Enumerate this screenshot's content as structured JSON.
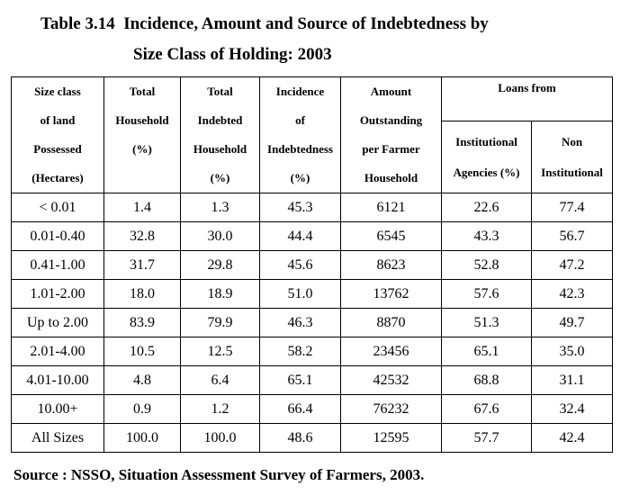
{
  "title_lines": [
    "Table 3.14  Incidence, Amount and Source of Indebtedness by",
    "Size Class of Holding: 2003"
  ],
  "table": {
    "header": [
      [
        "Size class",
        "of land",
        "Possessed",
        "(Hectares)"
      ],
      [
        "Total",
        "Household",
        "(%)"
      ],
      [
        "Total",
        "Indebted",
        "Household",
        "(%)"
      ],
      [
        "Incidence",
        "of",
        "Indebtedness",
        "(%)"
      ],
      [
        "Amount",
        "Outstanding",
        "per Farmer",
        "Household"
      ]
    ],
    "group_header": "Loans from",
    "sub_header": [
      [
        "Institutional",
        "Agencies (%)"
      ],
      [
        "Non",
        "Institutional"
      ]
    ],
    "rows": [
      [
        "< 0.01",
        "1.4",
        "1.3",
        "45.3",
        "6121",
        "22.6",
        "77.4"
      ],
      [
        "0.01-0.40",
        "32.8",
        "30.0",
        "44.4",
        "6545",
        "43.3",
        "56.7"
      ],
      [
        "0.41-1.00",
        "31.7",
        "29.8",
        "45.6",
        "8623",
        "52.8",
        "47.2"
      ],
      [
        "1.01-2.00",
        "18.0",
        "18.9",
        "51.0",
        "13762",
        "57.6",
        "42.3"
      ],
      [
        "Up to 2.00",
        "83.9",
        "79.9",
        "46.3",
        "8870",
        "51.3",
        "49.7"
      ],
      [
        "2.01-4.00",
        "10.5",
        "12.5",
        "58.2",
        "23456",
        "65.1",
        "35.0"
      ],
      [
        "4.01-10.00",
        "4.8",
        "6.4",
        "65.1",
        "42532",
        "68.8",
        "31.1"
      ],
      [
        "10.00+",
        "0.9",
        "1.2",
        "66.4",
        "76232",
        "67.6",
        "32.4"
      ],
      [
        "All Sizes",
        "100.0",
        "100.0",
        "48.6",
        "12595",
        "57.7",
        "42.4"
      ]
    ]
  },
  "source": "Source : NSSO, Situation Assessment Survey of Farmers, 2003."
}
